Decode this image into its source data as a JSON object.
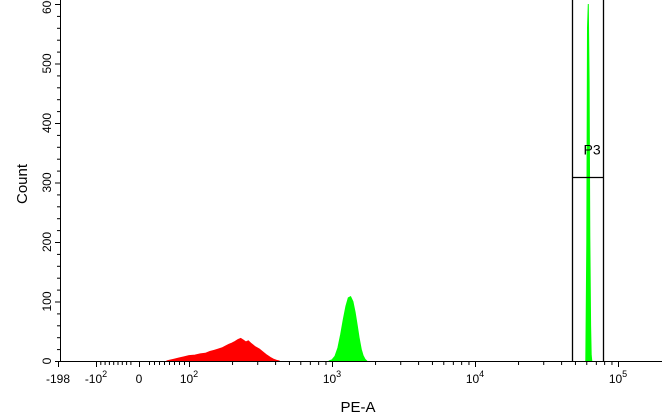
{
  "chart_data": {
    "type": "area",
    "xlabel": "PE-A",
    "ylabel": "Count",
    "x_scale": "biexponential",
    "y_range": [
      0,
      600
    ],
    "y_ticks": [
      {
        "value": 0,
        "label": "0"
      },
      {
        "value": 100,
        "label": "100"
      },
      {
        "value": 200,
        "label": "200"
      },
      {
        "value": 300,
        "label": "300"
      },
      {
        "value": 400,
        "label": "400"
      },
      {
        "value": 500,
        "label": "500"
      },
      {
        "value": 600,
        "label": "600"
      }
    ],
    "x_ticks": [
      {
        "value": -198,
        "base": "-198",
        "exp": ""
      },
      {
        "value": -100,
        "base": "-10",
        "exp": "2"
      },
      {
        "value": 0,
        "base": "0",
        "exp": ""
      },
      {
        "value": 100,
        "base": "10",
        "exp": "2"
      },
      {
        "value": 1000,
        "base": "10",
        "exp": "3"
      },
      {
        "value": 10000,
        "base": "10",
        "exp": "4"
      },
      {
        "value": 100000,
        "base": "10",
        "exp": "5"
      }
    ],
    "series": [
      {
        "color": "#ff0000",
        "points": [
          [
            55,
            0
          ],
          [
            60,
            1
          ],
          [
            70,
            3
          ],
          [
            80,
            5
          ],
          [
            90,
            7
          ],
          [
            100,
            9
          ],
          [
            110,
            10
          ],
          [
            120,
            12
          ],
          [
            130,
            13
          ],
          [
            140,
            16
          ],
          [
            150,
            18
          ],
          [
            160,
            20
          ],
          [
            170,
            22
          ],
          [
            180,
            25
          ],
          [
            190,
            28
          ],
          [
            200,
            30
          ],
          [
            210,
            33
          ],
          [
            220,
            36
          ],
          [
            230,
            38
          ],
          [
            240,
            35
          ],
          [
            250,
            32
          ],
          [
            260,
            34
          ],
          [
            270,
            30
          ],
          [
            280,
            27
          ],
          [
            290,
            24
          ],
          [
            310,
            20
          ],
          [
            330,
            15
          ],
          [
            350,
            10
          ],
          [
            370,
            6
          ],
          [
            390,
            3
          ],
          [
            410,
            1
          ],
          [
            430,
            0
          ]
        ]
      },
      {
        "color": "#00ff00",
        "points": [
          [
            950,
            0
          ],
          [
            1000,
            2
          ],
          [
            1050,
            8
          ],
          [
            1100,
            22
          ],
          [
            1150,
            45
          ],
          [
            1200,
            70
          ],
          [
            1250,
            92
          ],
          [
            1300,
            106
          ],
          [
            1350,
            108
          ],
          [
            1400,
            100
          ],
          [
            1450,
            82
          ],
          [
            1500,
            60
          ],
          [
            1550,
            38
          ],
          [
            1600,
            20
          ],
          [
            1650,
            9
          ],
          [
            1700,
            3
          ],
          [
            1750,
            0
          ]
        ]
      },
      {
        "color": "#00ff00",
        "points": [
          [
            59500,
            0
          ],
          [
            60500,
            200
          ],
          [
            61200,
            560
          ],
          [
            62000,
            600
          ],
          [
            62800,
            470
          ],
          [
            63500,
            210
          ],
          [
            64300,
            60
          ],
          [
            65000,
            10
          ],
          [
            65600,
            0
          ]
        ]
      }
    ],
    "gate": {
      "label": "P3",
      "x_range": [
        48000,
        78000
      ],
      "y_marker": 310
    }
  }
}
